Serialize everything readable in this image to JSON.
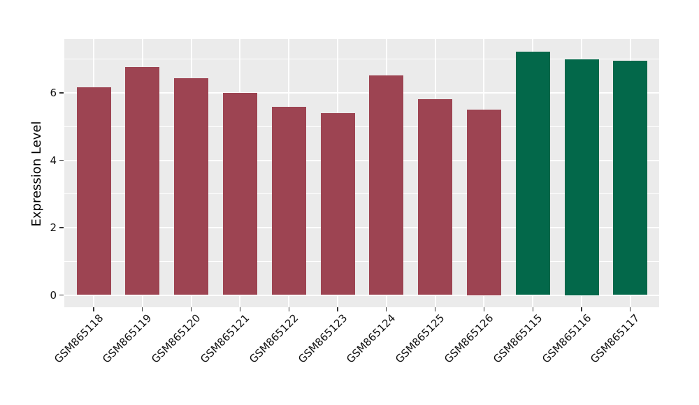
{
  "figure": {
    "background": "#ffffff",
    "panel_background": "#ebebeb",
    "grid_color": "#ffffff",
    "tick_color": "#333333",
    "axis_text_color": "#111111",
    "bar_color_red": "#9d4452",
    "bar_color_green": "#03684a"
  },
  "chart_data": {
    "type": "bar",
    "ylabel": "Expression Level",
    "xlabel": "",
    "categories": [
      "GSM865118",
      "GSM865119",
      "GSM865120",
      "GSM865121",
      "GSM865122",
      "GSM865123",
      "GSM865124",
      "GSM865125",
      "GSM865126",
      "GSM865115",
      "GSM865116",
      "GSM865117"
    ],
    "values": [
      6.16,
      6.77,
      6.44,
      6.01,
      5.58,
      5.4,
      6.52,
      5.81,
      5.5,
      7.22,
      7.0,
      6.96
    ],
    "bar_colors": [
      "#9d4452",
      "#9d4452",
      "#9d4452",
      "#9d4452",
      "#9d4452",
      "#9d4452",
      "#9d4452",
      "#9d4452",
      "#9d4452",
      "#03684a",
      "#03684a",
      "#03684a"
    ],
    "y_ticks": [
      0,
      2,
      4,
      6
    ],
    "y_tick_labels": [
      "0",
      "2",
      "4",
      "6"
    ],
    "y_minor_gridlines": [
      1,
      3,
      5,
      7
    ],
    "ylim": [
      -0.36,
      7.6
    ],
    "grid": true,
    "legend_position": "none"
  }
}
